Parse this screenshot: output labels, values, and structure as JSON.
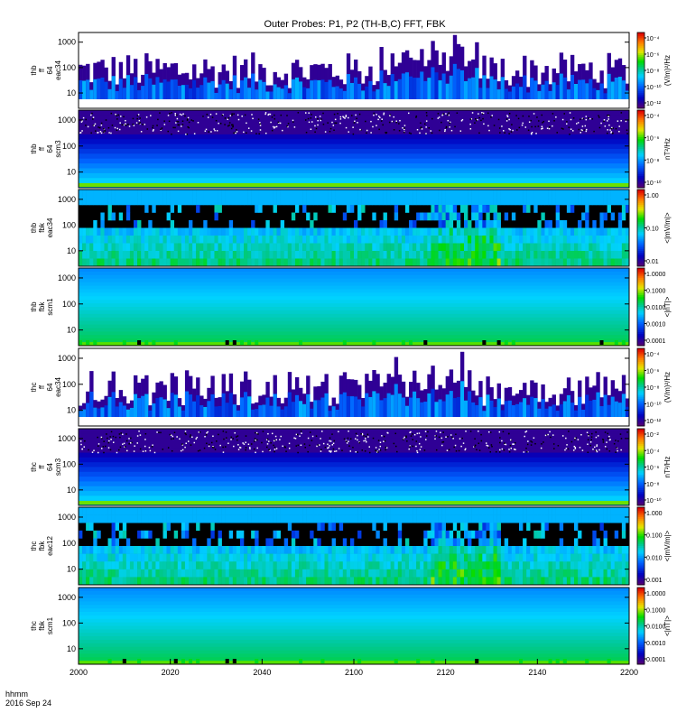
{
  "title": "Outer Probes: P1, P2 (TH-B,C) FFT, FBK",
  "footer": {
    "line1": "hhmm",
    "line2": "2016 Sep 24"
  },
  "chart_data": {
    "type": "heatmap",
    "x_axis": {
      "range": [
        2000,
        2200
      ],
      "tick_labels": [
        "2000",
        "2020",
        "2040",
        "2100",
        "2120",
        "2140",
        "2200"
      ]
    },
    "panels": [
      {
        "id": "thb-ff-eac34",
        "ylabel": [
          "thb",
          "ff",
          "64",
          "eac34"
        ],
        "y_scale": "log",
        "y_tick_labels": [
          "10",
          "100",
          "1000"
        ],
        "colorbar_label": "(V/m)²/Hz",
        "colorbar_ticks": [
          "10⁻⁴",
          "10⁻⁶",
          "10⁻⁸",
          "10⁻¹⁰",
          "10⁻¹²"
        ],
        "style": "sparse"
      },
      {
        "id": "thb-ff-scm3",
        "ylabel": [
          "thb",
          "ff",
          "64",
          "scm3"
        ],
        "y_scale": "log",
        "y_tick_labels": [
          "10",
          "100",
          "1000"
        ],
        "colorbar_label": "nT²/Hz",
        "colorbar_ticks": [
          "10⁻⁴",
          "10⁻⁶",
          "10⁻⁸",
          "10⁻¹⁰"
        ],
        "style": "banded-noise"
      },
      {
        "id": "thb-fbk-eac34",
        "ylabel": [
          "thb",
          "fbk",
          "eac34"
        ],
        "y_scale": "log",
        "y_tick_labels": [
          "10",
          "100",
          "1000"
        ],
        "colorbar_label": "<|mV/m|>",
        "colorbar_ticks": [
          "1.00",
          "0.10",
          "0.01"
        ],
        "style": "blocky"
      },
      {
        "id": "thb-fbk-scm1",
        "ylabel": [
          "thb",
          "fbk",
          "scm1"
        ],
        "y_scale": "log",
        "y_tick_labels": [
          "10",
          "100",
          "1000"
        ],
        "colorbar_label": "<|nT|>",
        "colorbar_ticks": [
          "1.0000",
          "0.1000",
          "0.0100",
          "0.0010",
          "0.0001"
        ],
        "style": "smooth"
      },
      {
        "id": "thc-ff-eac34",
        "ylabel": [
          "thc",
          "ff",
          "64",
          "eac34"
        ],
        "y_scale": "log",
        "y_tick_labels": [
          "10",
          "100",
          "1000"
        ],
        "colorbar_label": "(V/m)²/Hz",
        "colorbar_ticks": [
          "10⁻⁴",
          "10⁻⁶",
          "10⁻⁸",
          "10⁻¹⁰",
          "10⁻¹²"
        ],
        "style": "sparse"
      },
      {
        "id": "thc-ff-scm3",
        "ylabel": [
          "thc",
          "ff",
          "64",
          "scm3"
        ],
        "y_scale": "log",
        "y_tick_labels": [
          "10",
          "100",
          "1000"
        ],
        "colorbar_label": "nT²/Hz",
        "colorbar_ticks": [
          "10⁻²",
          "10⁻⁴",
          "10⁻⁶",
          "10⁻⁸",
          "10⁻¹⁰"
        ],
        "style": "banded-noise"
      },
      {
        "id": "thc-fbk-eac12",
        "ylabel": [
          "thc",
          "fbk",
          "eac12"
        ],
        "y_scale": "log",
        "y_tick_labels": [
          "10",
          "100",
          "1000"
        ],
        "colorbar_label": "<|mV/m|>",
        "colorbar_ticks": [
          "1.000",
          "0.100",
          "0.010",
          "0.001"
        ],
        "style": "blocky"
      },
      {
        "id": "thc-fbk-scm1",
        "ylabel": [
          "thc",
          "fbk",
          "scm1"
        ],
        "y_scale": "log",
        "y_tick_labels": [
          "10",
          "100",
          "1000"
        ],
        "colorbar_label": "<|nT|>",
        "colorbar_ticks": [
          "1.0000",
          "0.1000",
          "0.0100",
          "0.0010",
          "0.0001"
        ],
        "style": "smooth"
      }
    ]
  }
}
